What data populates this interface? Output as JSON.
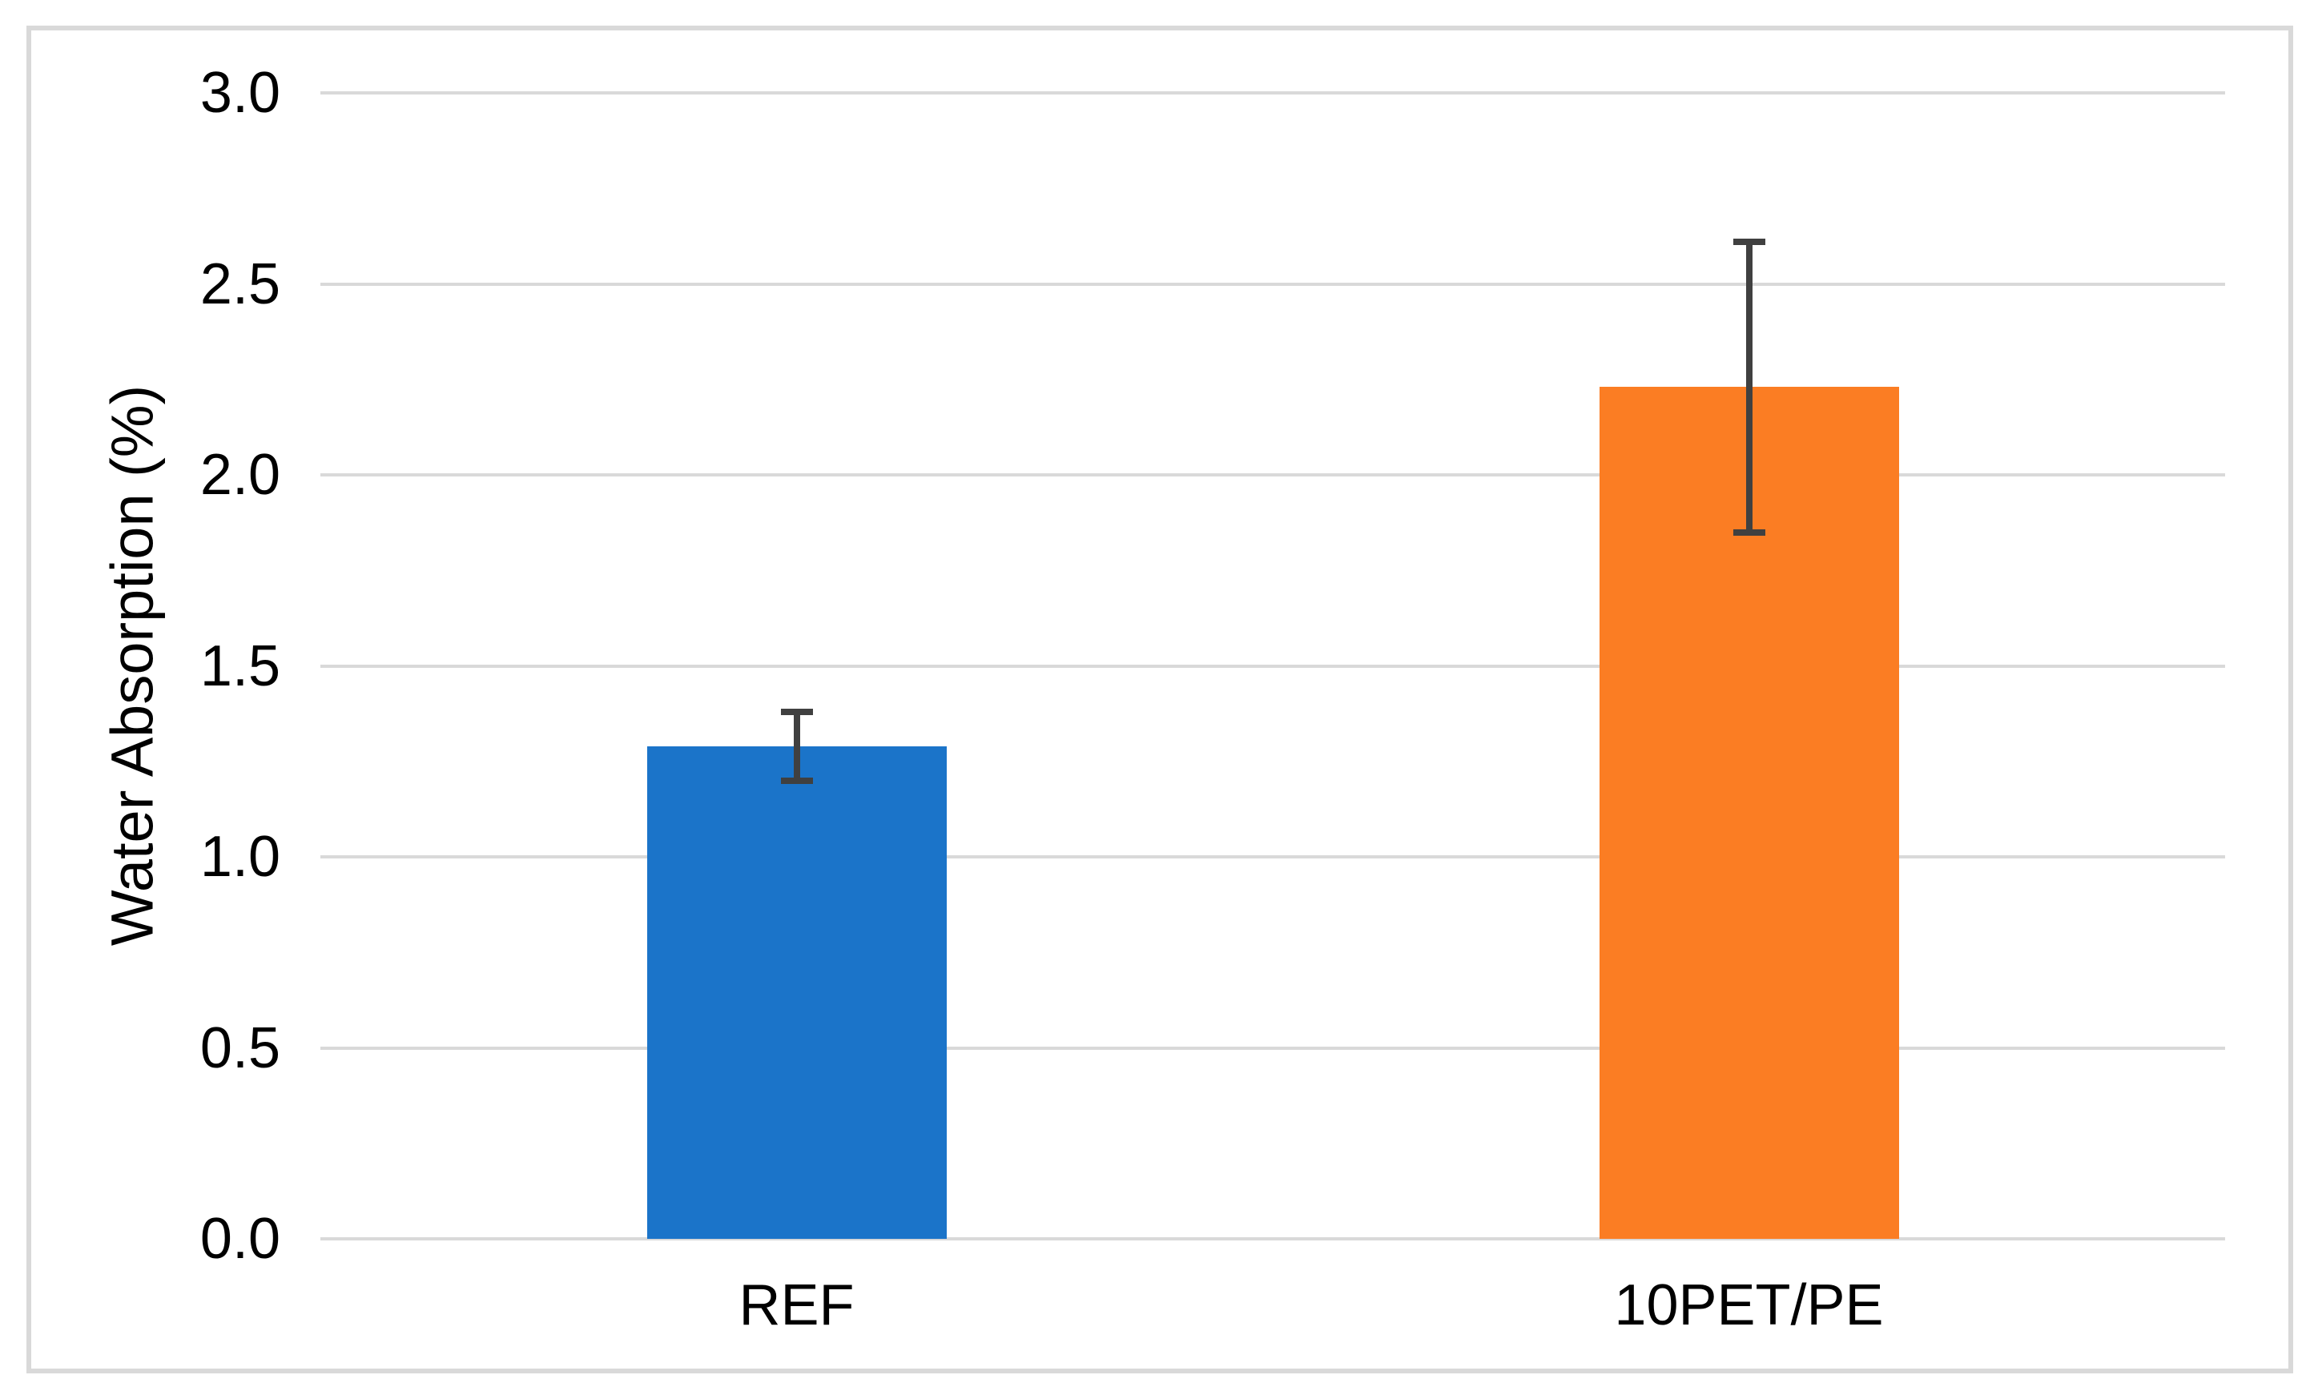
{
  "chart_data": {
    "type": "bar",
    "title": "",
    "categories": [
      "REF",
      "10PET/PE"
    ],
    "values": [
      1.29,
      2.23
    ],
    "error_bars": {
      "plus": [
        0.09,
        0.38
      ],
      "minus": [
        0.09,
        0.38
      ]
    },
    "bar_colors": [
      "#1B74C9",
      "#FB7D23"
    ],
    "xlabel": "",
    "ylabel": "Water Absorption (%)",
    "ylim": [
      0,
      3.0
    ],
    "ytick_step": 0.5,
    "yticks": [
      "0.0",
      "0.5",
      "1.0",
      "1.5",
      "2.0",
      "2.5",
      "3.0"
    ],
    "grid": true,
    "legend": "none",
    "colors": {
      "gridline": "#D9D9D9",
      "frame_border": "#D9D9D9",
      "error_bar": "#404040",
      "text": "#000000",
      "background": "#FFFFFF"
    }
  }
}
